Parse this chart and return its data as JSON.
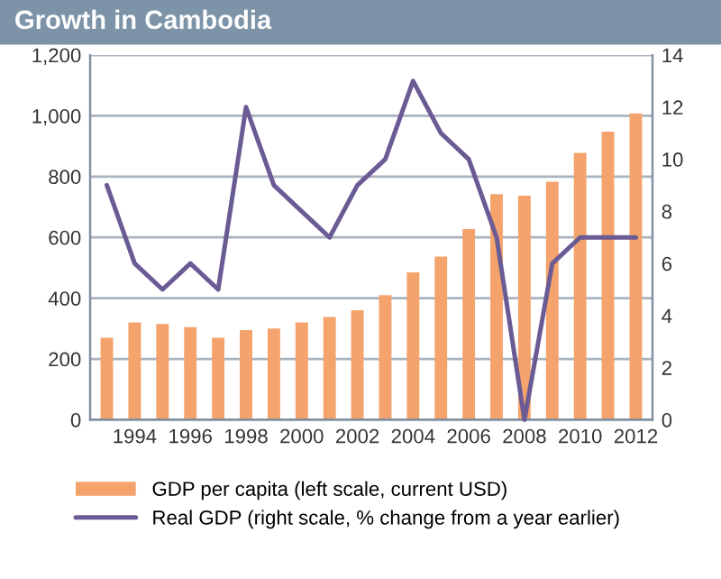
{
  "chart_data": {
    "type": "bar",
    "title": "Growth in Cambodia",
    "categories": [
      null,
      "1994",
      null,
      "1996",
      null,
      "1998",
      null,
      "2000",
      null,
      "2002",
      null,
      "2004",
      null,
      "2006",
      null,
      "2008",
      null,
      "2010",
      null,
      "2012"
    ],
    "series": [
      {
        "name": "GDP per capita (left scale, current USD)",
        "color": "#f4a36c",
        "values": [
          270,
          320,
          315,
          305,
          270,
          295,
          300,
          320,
          338,
          360,
          410,
          485,
          537,
          627,
          742,
          737,
          783,
          878,
          948,
          1008
        ]
      },
      {
        "name": "Real GDP (right scale, % change from a year earlier)",
        "type": "line",
        "axis": "y2",
        "color": "#6b5b95",
        "values": [
          9,
          6,
          5,
          6,
          5,
          12,
          9,
          8,
          7,
          9,
          10,
          13,
          11,
          10,
          7,
          0,
          6,
          7,
          7,
          7
        ]
      }
    ],
    "ylim": [
      0,
      1200
    ],
    "yticks": [
      0,
      {
        "value": 200,
        "label": "200"
      },
      400,
      600,
      800,
      {
        "value": 1000,
        "label": "1,000"
      },
      {
        "value": 1200,
        "label": "1,200"
      }
    ],
    "y2lim": [
      0,
      14
    ],
    "y2ticks": [
      0,
      2,
      4,
      6,
      8,
      10,
      12,
      14
    ],
    "grid": "y",
    "legend": "bottom",
    "marker": "none",
    "line_style": "solid"
  }
}
